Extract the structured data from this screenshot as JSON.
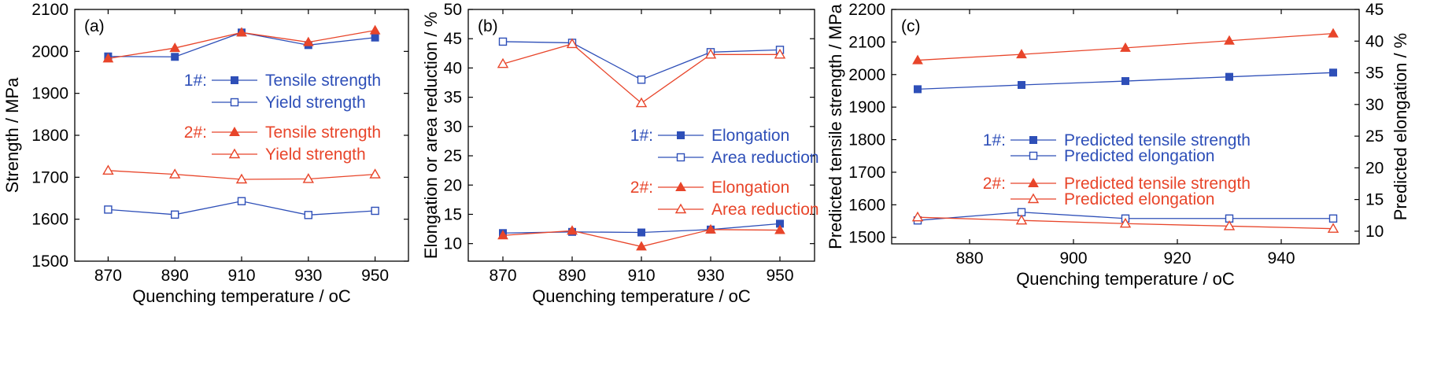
{
  "colors": {
    "blue": "#2E4FB8",
    "red": "#E8452A",
    "axis": "#000000"
  },
  "chart_data": [
    {
      "type": "line",
      "panel_label": "(a)",
      "xlabel": "Quenching temperature / ",
      "xlabel_unit": "oC",
      "ylabel": "Strength / MPa",
      "xlim": [
        860,
        960
      ],
      "ylim": [
        1500,
        2100
      ],
      "x_ticks": [
        870,
        890,
        910,
        930,
        950
      ],
      "y_ticks": [
        1500,
        1600,
        1700,
        1800,
        1900,
        2000,
        2100
      ],
      "x": [
        870,
        890,
        910,
        930,
        950
      ],
      "legend": {
        "group1_label": "1#:",
        "group2_label": "2#:",
        "placement": "center-right"
      },
      "series": [
        {
          "name": "Tensile strength",
          "group": "1#:",
          "color": "blue",
          "marker": "square-filled",
          "values": [
            1988,
            1987,
            2045,
            2015,
            2033
          ]
        },
        {
          "name": "Yield strength",
          "group": "1#:",
          "color": "blue",
          "marker": "square-open",
          "values": [
            1623,
            1611,
            1643,
            1610,
            1620
          ]
        },
        {
          "name": "Tensile strength",
          "group": "2#:",
          "color": "red",
          "marker": "triangle-filled",
          "values": [
            1983,
            2008,
            2045,
            2022,
            2050
          ]
        },
        {
          "name": "Yield strength",
          "group": "2#:",
          "color": "red",
          "marker": "triangle-open",
          "values": [
            1716,
            1707,
            1695,
            1696,
            1707
          ]
        }
      ]
    },
    {
      "type": "line",
      "panel_label": "(b)",
      "xlabel": "Quenching temperature / ",
      "xlabel_unit": "oC",
      "ylabel": "Elongation or area reduction / %",
      "xlim": [
        860,
        960
      ],
      "ylim": [
        7,
        50
      ],
      "x_ticks": [
        870,
        890,
        910,
        930,
        950
      ],
      "y_ticks": [
        10,
        15,
        20,
        25,
        30,
        35,
        40,
        45,
        50
      ],
      "x": [
        870,
        890,
        910,
        930,
        950
      ],
      "legend": {
        "group1_label": "1#:",
        "group2_label": "2#:",
        "placement": "center-right"
      },
      "series": [
        {
          "name": "Elongation",
          "group": "1#:",
          "color": "blue",
          "marker": "square-filled",
          "values": [
            11.8,
            12.0,
            11.9,
            12.4,
            13.4
          ]
        },
        {
          "name": "Area reduction",
          "group": "1#:",
          "color": "blue",
          "marker": "square-open",
          "values": [
            44.5,
            44.3,
            38.0,
            42.7,
            43.1
          ]
        },
        {
          "name": "Elongation",
          "group": "2#:",
          "color": "red",
          "marker": "triangle-filled",
          "values": [
            11.4,
            12.2,
            9.5,
            12.4,
            12.3
          ]
        },
        {
          "name": "Area reduction",
          "group": "2#:",
          "color": "red",
          "marker": "triangle-open",
          "values": [
            40.7,
            44.1,
            34.0,
            42.3,
            42.3
          ]
        }
      ]
    },
    {
      "type": "line",
      "panel_label": "(c)",
      "xlabel": "Quenching temperature / ",
      "xlabel_unit": "oC",
      "ylabel": "Predicted tensile strength / MPa",
      "y2label": "Predicted elongation / %",
      "xlim": [
        865,
        955
      ],
      "ylim": [
        1480,
        2200
      ],
      "y2lim": [
        8,
        45
      ],
      "x_ticks": [
        880,
        900,
        920,
        940
      ],
      "y_ticks": [
        1500,
        1600,
        1700,
        1800,
        1900,
        2000,
        2100,
        2200
      ],
      "y2_ticks": [
        10,
        15,
        20,
        25,
        30,
        35,
        40,
        45
      ],
      "x": [
        870,
        890,
        910,
        930,
        950
      ],
      "legend": {
        "group1_label": "1#:",
        "group2_label": "2#:",
        "placement": "center-right"
      },
      "series": [
        {
          "name": "Predicted tensile strength",
          "group": "1#:",
          "color": "blue",
          "marker": "square-filled",
          "axis": "left",
          "values": [
            1955,
            1968,
            1980,
            1993,
            2006
          ]
        },
        {
          "name": "Predicted elongation",
          "group": "1#:",
          "color": "blue",
          "marker": "square-open",
          "axis": "right",
          "values": [
            11.7,
            13.0,
            12.0,
            12.0,
            12.0
          ]
        },
        {
          "name": "Predicted tensile strength",
          "group": "2#:",
          "color": "red",
          "marker": "triangle-filled",
          "axis": "left",
          "values": [
            2044,
            2062,
            2082,
            2104,
            2126
          ]
        },
        {
          "name": "Predicted elongation",
          "group": "2#:",
          "color": "red",
          "marker": "triangle-open",
          "axis": "right",
          "values": [
            12.2,
            11.7,
            11.2,
            10.8,
            10.4
          ]
        }
      ]
    }
  ]
}
